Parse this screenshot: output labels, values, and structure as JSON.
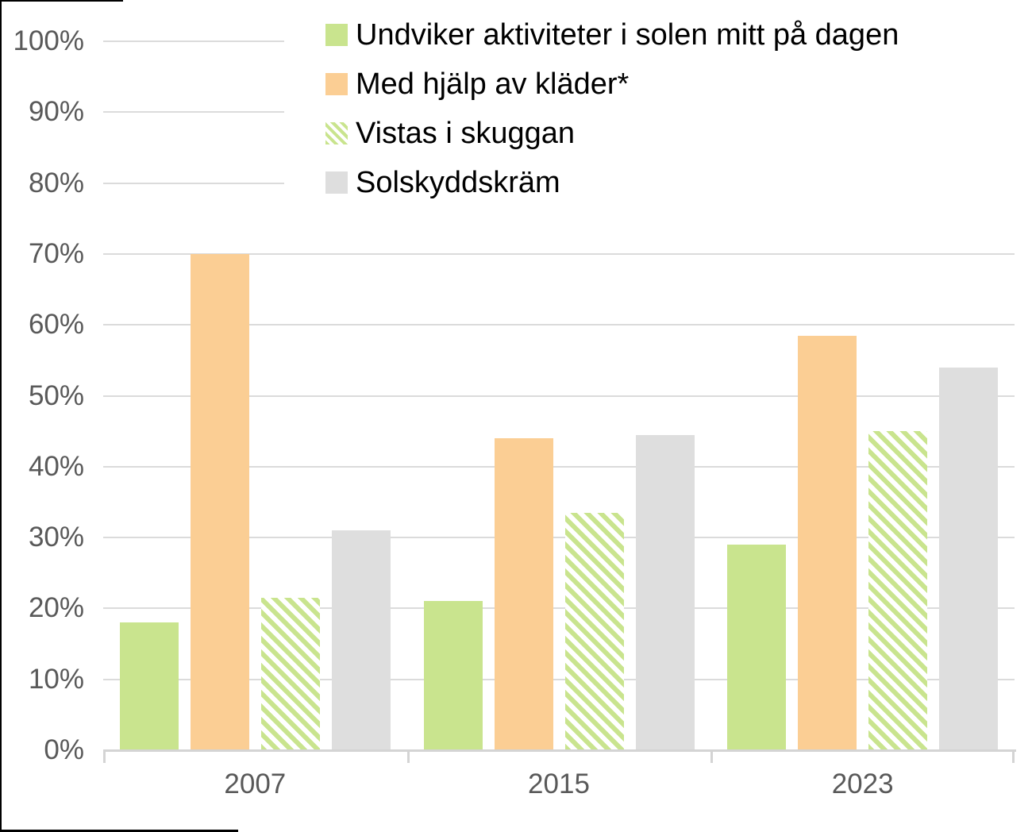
{
  "chart_data": {
    "type": "bar",
    "categories": [
      "2007",
      "2015",
      "2023"
    ],
    "series": [
      {
        "name": "Undviker aktiviteter i solen mitt på dagen",
        "values": [
          18,
          21,
          29
        ],
        "color": "#c9e48e",
        "pattern": "solid"
      },
      {
        "name": "Med hjälp av kläder*",
        "values": [
          70,
          44,
          58.5
        ],
        "color": "#fbce94",
        "pattern": "solid"
      },
      {
        "name": "Vistas i skuggan",
        "values": [
          21.5,
          33.5,
          45
        ],
        "color": "#c9e48e",
        "pattern": "diagonal-hatch"
      },
      {
        "name": "Solskyddskräm",
        "values": [
          31,
          44.5,
          54
        ],
        "color": "#dedede",
        "pattern": "solid"
      }
    ],
    "title": "",
    "xlabel": "",
    "ylabel": "",
    "ylim": [
      0,
      100
    ],
    "y_ticks": [
      "0%",
      "10%",
      "20%",
      "30%",
      "40%",
      "50%",
      "60%",
      "70%",
      "80%",
      "90%",
      "100%"
    ],
    "grid": true,
    "legend_position": "top-inside",
    "colors": {
      "gridline": "#dbdbdb",
      "axis_line": "#d4d4d4",
      "axis_text": "#595959",
      "legend_text": "#000000"
    }
  }
}
